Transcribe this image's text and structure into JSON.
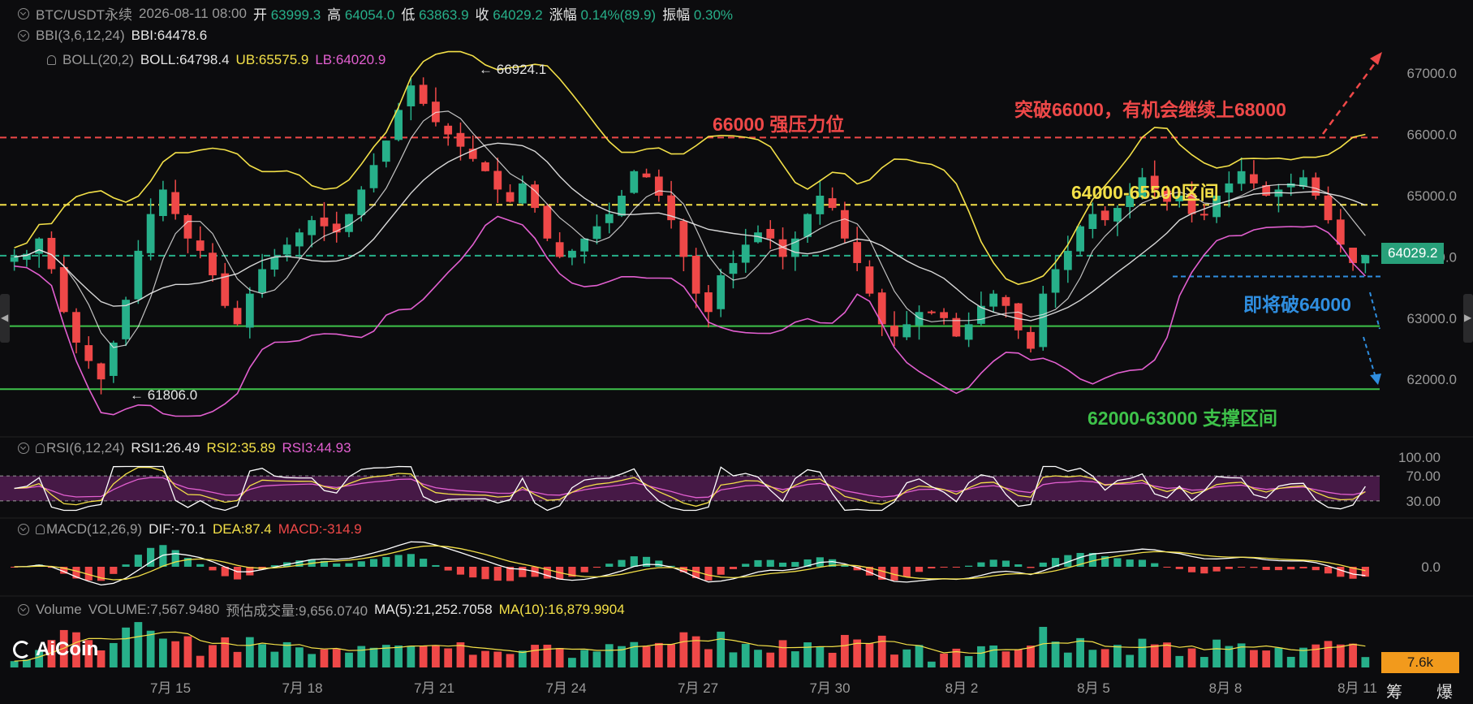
{
  "header": {
    "symbol": "BTC/USDT永续",
    "datetime": "2026-08-11 08:00",
    "open_label": "开",
    "open": "63999.3",
    "high_label": "高",
    "high": "64054.0",
    "low_label": "低",
    "low": "63863.9",
    "close_label": "收",
    "close": "64029.2",
    "change_label": "涨幅",
    "change": "0.14%(89.9)",
    "amp_label": "振幅",
    "amp": "0.30%"
  },
  "bbi": {
    "name": "BBI(3,6,12,24)",
    "value": "BBI:64478.6"
  },
  "boll": {
    "name": "BOLL(20,2)",
    "mid": "BOLL:64798.4",
    "ub": "UB:65575.9",
    "lb": "LB:64020.9"
  },
  "rsi": {
    "name": "RSI(6,12,24)",
    "rsi1": "RSI1:26.49",
    "rsi2": "RSI2:35.89",
    "rsi3": "RSI3:44.93"
  },
  "macd": {
    "name": "MACD(12,26,9)",
    "dif": "DIF:-70.1",
    "dea": "DEA:87.4",
    "macd": "MACD:-314.9"
  },
  "volume": {
    "name": "Volume",
    "vol": "VOLUME:7,567.9480",
    "est": "预估成交量:9,656.0740",
    "ma5": "MA(5):21,252.7058",
    "ma10": "MA(10):16,879.9904",
    "last_tag": "7.6k"
  },
  "price_tag": "64029.2",
  "high_marker": "66924.1",
  "low_marker": "61806.0",
  "annotations": {
    "resistance": "66000 强压力位",
    "breakout": "突破66000，有机会继续上68000",
    "range": "64000-65500区间",
    "break_down": "即将破64000",
    "support": "62000-63000 支撑区间"
  },
  "footer_right": [
    "筹",
    "爆"
  ],
  "logo": "AiCoin",
  "colors": {
    "up": "#27b08a",
    "down": "#ef4848",
    "boll_ub": "#f3e048",
    "boll_lb": "#e25fd0",
    "bg": "#0c0c0e"
  },
  "chart_data": {
    "type": "candlestick",
    "x_ticks": [
      "7月 15",
      "7月 18",
      "7月 21",
      "7月 24",
      "7月 27",
      "7月 30",
      "8月 2",
      "8月 5",
      "8月 8",
      "8月 11"
    ],
    "y_ticks": [
      "67000.0",
      "66000.0",
      "65000.0",
      "64000.0",
      "63000.0",
      "62000.0"
    ],
    "ylim": [
      61300,
      67400
    ],
    "rsi_ticks": [
      "100.00",
      "70.00",
      "30.00"
    ],
    "macd_ticks": [
      "0.0"
    ],
    "horizontal_levels": [
      {
        "value": 65950,
        "color": "#ef4848",
        "style": "dashed"
      },
      {
        "value": 64850,
        "color": "#f3e048",
        "style": "dashed"
      },
      {
        "value": 64020,
        "color": "#27b08a",
        "style": "dashed"
      },
      {
        "value": 62870,
        "color": "#3ec24a",
        "style": "solid"
      },
      {
        "value": 61840,
        "color": "#3ec24a",
        "style": "solid"
      }
    ],
    "close_path": [
      64000,
      64050,
      64300,
      63800,
      63100,
      62600,
      62300,
      62000,
      62600,
      63300,
      64100,
      64700,
      65100,
      64700,
      64300,
      64100,
      63700,
      63200,
      62900,
      63400,
      63800,
      64000,
      64200,
      64400,
      64600,
      64500,
      64400,
      64700,
      65100,
      65500,
      65900,
      66400,
      66800,
      66500,
      66200,
      66000,
      65800,
      65600,
      65400,
      65100,
      64900,
      65200,
      64800,
      64300,
      64000,
      64100,
      64300,
      64500,
      64700,
      65000,
      65400,
      65300,
      65000,
      64600,
      64000,
      63400,
      63100,
      63700,
      63900,
      64200,
      64400,
      64300,
      64000,
      64300,
      64700,
      65000,
      64800,
      64300,
      63900,
      63400,
      62900,
      62700,
      62900,
      63100,
      63100,
      63000,
      62700,
      62900,
      63200,
      63400,
      63200,
      62800,
      62500,
      63400,
      63800,
      64100,
      64500,
      64700,
      64600,
      64800,
      65000,
      65300,
      65100,
      64900,
      65000,
      64700,
      64700,
      65000,
      65200,
      65400,
      65200,
      65000,
      65100,
      65200,
      65300,
      65000,
      64600,
      64200,
      63900,
      64029
    ]
  }
}
